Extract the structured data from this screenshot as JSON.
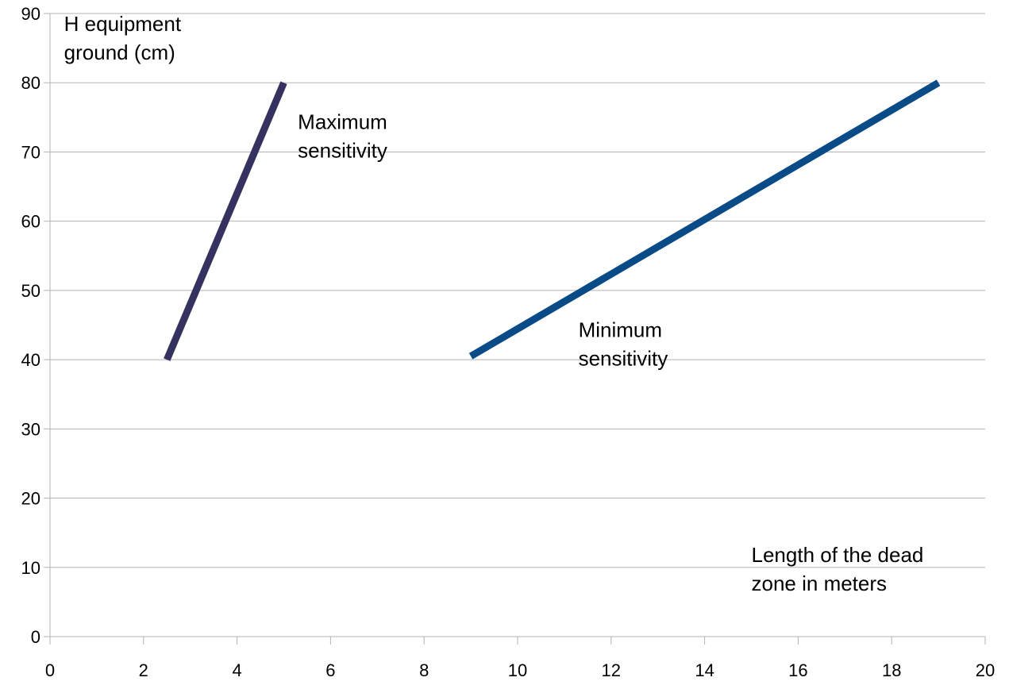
{
  "chart_data": {
    "type": "line",
    "xlim": [
      0,
      20
    ],
    "ylim": [
      0,
      90
    ],
    "x_ticks": [
      0,
      2,
      4,
      6,
      8,
      10,
      12,
      14,
      16,
      18,
      20
    ],
    "y_ticks": [
      0,
      10,
      20,
      30,
      40,
      50,
      60,
      70,
      80,
      90
    ],
    "grid": "horizontal",
    "legend": "none",
    "series": [
      {
        "color": "#35325f",
        "points": [
          {
            "x": 2.5,
            "y": 40
          },
          {
            "x": 5.0,
            "y": 80
          }
        ]
      },
      {
        "color": "#084b86",
        "points": [
          {
            "x": 9.0,
            "y": 40.5
          },
          {
            "x": 19.0,
            "y": 80
          }
        ]
      }
    ],
    "annotations": [
      {
        "id": "ylabel",
        "lines": [
          "H equipment",
          "ground (cm)"
        ],
        "x": 0.3,
        "y": 87.5
      },
      {
        "id": "max",
        "lines": [
          "Maximum",
          "sensitivity"
        ],
        "x": 5.3,
        "y": 73.3
      },
      {
        "id": "min",
        "lines": [
          "Minimum",
          "sensitivity"
        ],
        "x": 11.3,
        "y": 43.3
      },
      {
        "id": "xlabel",
        "lines": [
          "Length of the dead",
          "zone in meters"
        ],
        "x": 15.0,
        "y": 10.8
      }
    ]
  }
}
